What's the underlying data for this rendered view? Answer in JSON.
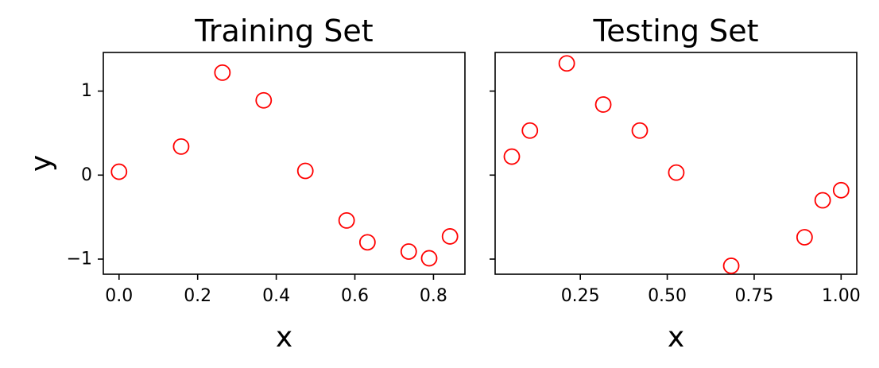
{
  "chart_data": [
    {
      "type": "scatter",
      "title": "Training Set",
      "xlabel": "x",
      "ylabel": "y",
      "xlim": [
        -0.04,
        0.88
      ],
      "ylim": [
        -1.18,
        1.46
      ],
      "xticks": [
        0.0,
        0.2,
        0.4,
        0.6,
        0.8
      ],
      "xtick_labels": [
        "0.0",
        "0.2",
        "0.4",
        "0.6",
        "0.8"
      ],
      "yticks": [
        -1,
        0,
        1
      ],
      "ytick_labels": [
        "−1",
        "0",
        "1"
      ],
      "grid": false,
      "marker": "open-circle",
      "marker_color": "#ff0000",
      "series": [
        {
          "x": [
            0.0,
            0.158,
            0.263,
            0.368,
            0.474,
            0.579,
            0.632,
            0.737,
            0.789,
            0.842
          ],
          "y": [
            0.04,
            0.34,
            1.22,
            0.89,
            0.05,
            -0.54,
            -0.8,
            -0.91,
            -0.99,
            -0.73
          ]
        }
      ]
    },
    {
      "type": "scatter",
      "title": "Testing Set",
      "xlabel": "x",
      "ylabel": "",
      "xlim": [
        0.005,
        1.045
      ],
      "ylim": [
        -1.18,
        1.46
      ],
      "xticks": [
        0.25,
        0.5,
        0.75,
        1.0
      ],
      "xtick_labels": [
        "0.25",
        "0.50",
        "0.75",
        "1.00"
      ],
      "yticks": [
        -1,
        0,
        1
      ],
      "ytick_labels": [
        "",
        "",
        ""
      ],
      "grid": false,
      "marker": "open-circle",
      "marker_color": "#ff0000",
      "series": [
        {
          "x": [
            0.053,
            0.105,
            0.211,
            0.316,
            0.421,
            0.526,
            0.684,
            0.895,
            0.947,
            1.0
          ],
          "y": [
            0.22,
            0.53,
            1.33,
            0.84,
            0.53,
            0.03,
            -1.08,
            -0.74,
            -0.3,
            -0.18
          ]
        }
      ]
    }
  ]
}
